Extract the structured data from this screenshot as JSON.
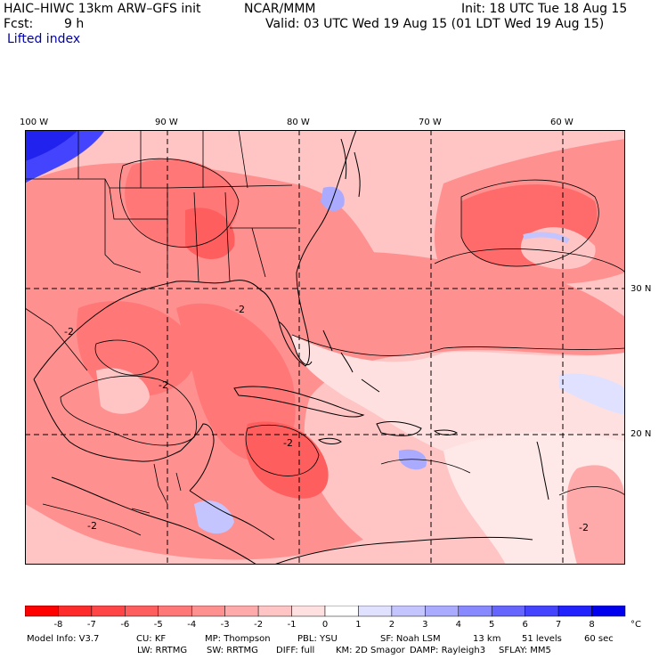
{
  "header": {
    "model_title": "HAIC–HIWC 13km ARW–GFS init",
    "org": "NCAR/MMM",
    "init": "Init: 18 UTC Tue 18 Aug 15",
    "fcst_label": "Fcst:",
    "fcst_value": "9 h",
    "valid": "Valid: 03 UTC Wed 19 Aug 15 (01 LDT Wed 19 Aug 15)",
    "field": "Lifted index"
  },
  "axes": {
    "lon_labels": [
      "100 W",
      "90 W",
      "80 W",
      "70 W",
      "60 W"
    ],
    "lat_labels": [
      "30 N",
      "20 N"
    ]
  },
  "map_labels": [
    "-2",
    "-2",
    "-2",
    "-2",
    "-2",
    "-2"
  ],
  "legend": {
    "levels": [
      "-8",
      "-7",
      "-6",
      "-5",
      "-4",
      "-3",
      "-2",
      "-1",
      "0",
      "1",
      "2",
      "3",
      "4",
      "5",
      "6",
      "7",
      "8"
    ],
    "unit": "°C",
    "colors": [
      "#ff0000",
      "#ff2a2a",
      "#ff4545",
      "#ff5e5e",
      "#ff7777",
      "#ff9090",
      "#ffaaaa",
      "#ffc4c4",
      "#ffe0e0",
      "#ffffff",
      "#e0e0ff",
      "#c4c4ff",
      "#aaaaff",
      "#8888ff",
      "#6666ff",
      "#4444ff",
      "#2222ff",
      "#0000ee"
    ]
  },
  "model_info": {
    "line1": [
      "Model Info: V3.7",
      "CU: KF",
      "MP: Thompson",
      "PBL: YSU",
      "SF: Noah LSM",
      "13 km",
      "51 levels",
      "60 sec"
    ],
    "line2": [
      "LW: RRTMG",
      "SW: RRTMG",
      "DIFF: full",
      "KM: 2D Smagor",
      "DAMP: Rayleigh3",
      "SFLAY: MM5"
    ]
  }
}
